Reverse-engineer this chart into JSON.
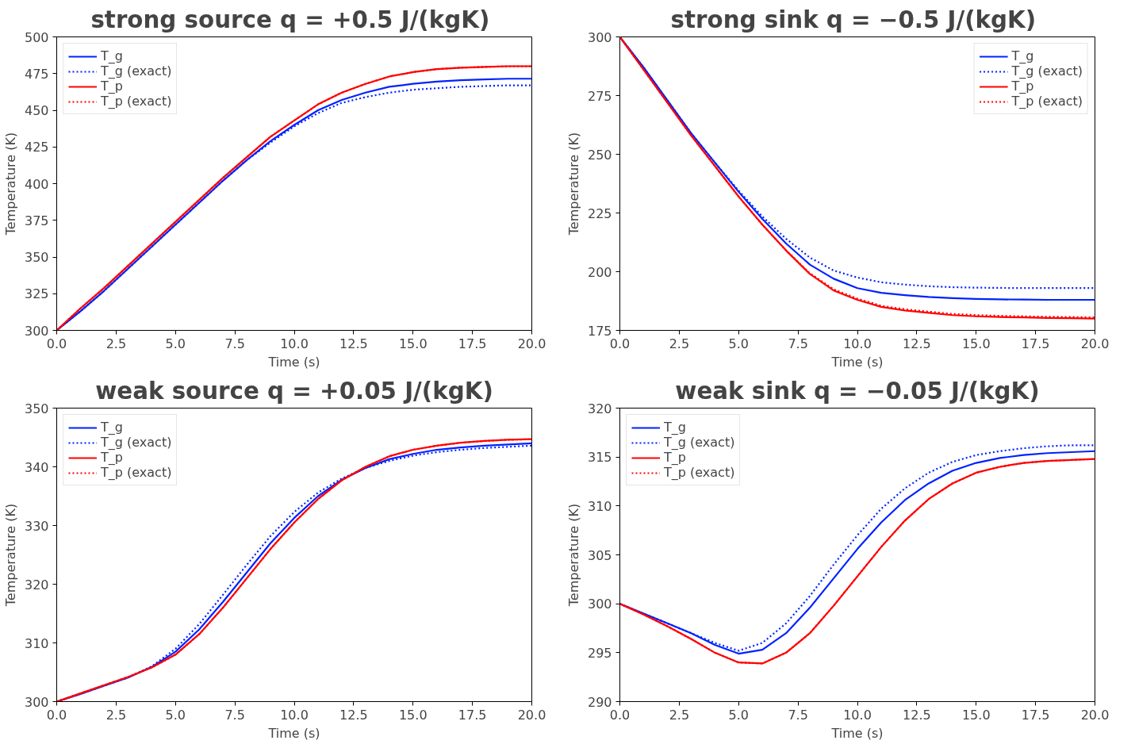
{
  "chart_data": [
    {
      "type": "line",
      "title": "strong  source q = +0.5 J/(kgK)",
      "xlabel": "Time (s)",
      "ylabel": "Temperature (K)",
      "legend": "top left",
      "grid": false,
      "x": [
        0,
        1,
        2,
        3,
        4,
        5,
        6,
        7,
        8,
        9,
        10,
        11,
        12,
        13,
        14,
        15,
        16,
        17,
        18,
        19,
        20
      ],
      "xlim": [
        0,
        20
      ],
      "xticks": [
        {
          "value": 0,
          "label": "0.0"
        },
        {
          "value": 2.5,
          "label": "2.5"
        },
        {
          "value": 5,
          "label": "5.0"
        },
        {
          "value": 7.5,
          "label": "7.5"
        },
        {
          "value": 10,
          "label": "10.0"
        },
        {
          "value": 12.5,
          "label": "12.5"
        },
        {
          "value": 15,
          "label": "15.0"
        },
        {
          "value": 17.5,
          "label": "17.5"
        },
        {
          "value": 20,
          "label": "20.0"
        }
      ],
      "ylim": [
        300,
        500
      ],
      "yticks": [
        300,
        325,
        350,
        375,
        400,
        425,
        450,
        475,
        500
      ],
      "series": [
        {
          "name": "T_g",
          "color": "#0022ff",
          "line_style": "solid",
          "values": [
            300,
            313,
            327,
            342,
            357,
            372,
            387,
            402,
            416,
            429,
            440,
            450,
            457,
            462,
            466,
            468,
            469.5,
            470.5,
            471,
            471.5,
            471.5
          ]
        },
        {
          "name": "T_g (exact)",
          "color": "#0022ff",
          "line_style": "dotted",
          "values": [
            300,
            313,
            327,
            342,
            357,
            372,
            387,
            402,
            416,
            428,
            439,
            448,
            455,
            459,
            462,
            464,
            465,
            466,
            466.5,
            467,
            467
          ]
        },
        {
          "name": "T_p",
          "color": "#ff0000",
          "line_style": "solid",
          "values": [
            300,
            315,
            329,
            344,
            359,
            374,
            389,
            404,
            418,
            432,
            443,
            454,
            462,
            468,
            473,
            476,
            478,
            479,
            479.5,
            480,
            480
          ]
        },
        {
          "name": "T_p (exact)",
          "color": "#ff0000",
          "line_style": "dotted",
          "values": [
            300,
            315,
            329,
            344,
            359,
            374,
            389,
            404,
            418,
            432,
            443,
            454,
            462,
            468,
            473,
            476,
            478,
            479,
            479.5,
            480,
            480
          ]
        }
      ]
    },
    {
      "type": "line",
      "title": "strong  sink q = −0.5 J/(kgK)",
      "xlabel": "Time (s)",
      "ylabel": "Temperature (K)",
      "legend": "top right",
      "grid": false,
      "x": [
        0,
        1,
        2,
        3,
        4,
        5,
        6,
        7,
        8,
        9,
        10,
        11,
        12,
        13,
        14,
        15,
        16,
        17,
        18,
        19,
        20
      ],
      "xlim": [
        0,
        20
      ],
      "xticks": [
        {
          "value": 0,
          "label": "0.0"
        },
        {
          "value": 2.5,
          "label": "2.5"
        },
        {
          "value": 5,
          "label": "5.0"
        },
        {
          "value": 7.5,
          "label": "7.5"
        },
        {
          "value": 10,
          "label": "10.0"
        },
        {
          "value": 12.5,
          "label": "12.5"
        },
        {
          "value": 15,
          "label": "15.0"
        },
        {
          "value": 17.5,
          "label": "17.5"
        },
        {
          "value": 20,
          "label": "20.0"
        }
      ],
      "ylim": [
        175,
        300
      ],
      "yticks": [
        175,
        200,
        225,
        250,
        275,
        300
      ],
      "series": [
        {
          "name": "T_g",
          "color": "#0022ff",
          "line_style": "solid",
          "values": [
            300,
            287,
            273,
            259,
            246.5,
            234,
            222.5,
            212,
            203,
            197,
            193,
            191,
            190,
            189.2,
            188.7,
            188.4,
            188.2,
            188.1,
            188,
            188,
            188
          ]
        },
        {
          "name": "T_g (exact)",
          "color": "#0022ff",
          "line_style": "dotted",
          "values": [
            300,
            287,
            273,
            259,
            246.5,
            234.5,
            223.5,
            214,
            206,
            200.5,
            197.5,
            195.5,
            194.5,
            193.8,
            193.4,
            193.2,
            193.1,
            193,
            193,
            193,
            193
          ]
        },
        {
          "name": "T_p",
          "color": "#ff0000",
          "line_style": "solid",
          "values": [
            300,
            286,
            272,
            258,
            245,
            232,
            220,
            209,
            199,
            192,
            188,
            185,
            183.5,
            182.5,
            181.5,
            181,
            180.7,
            180.5,
            180.3,
            180.2,
            180
          ]
        },
        {
          "name": "T_p (exact)",
          "color": "#ff0000",
          "line_style": "dotted",
          "values": [
            300,
            286,
            272,
            258,
            245,
            232,
            220,
            209,
            199.3,
            192.5,
            188.5,
            185.5,
            184,
            183,
            182,
            181.5,
            181.2,
            181,
            180.8,
            180.7,
            180.5
          ]
        }
      ]
    },
    {
      "type": "line",
      "title": "weak source q = +0.05 J/(kgK)",
      "xlabel": "Time (s)",
      "ylabel": "Temperature (K)",
      "legend": "top left",
      "grid": false,
      "x": [
        0,
        1,
        2,
        3,
        4,
        5,
        6,
        7,
        8,
        9,
        10,
        11,
        12,
        13,
        14,
        15,
        16,
        17,
        18,
        19,
        20
      ],
      "xlim": [
        0,
        20
      ],
      "xticks": [
        {
          "value": 0,
          "label": "0.0"
        },
        {
          "value": 2.5,
          "label": "2.5"
        },
        {
          "value": 5,
          "label": "5.0"
        },
        {
          "value": 7.5,
          "label": "7.5"
        },
        {
          "value": 10,
          "label": "10.0"
        },
        {
          "value": 12.5,
          "label": "12.5"
        },
        {
          "value": 15,
          "label": "15.0"
        },
        {
          "value": 17.5,
          "label": "17.5"
        },
        {
          "value": 20,
          "label": "20.0"
        }
      ],
      "ylim": [
        300,
        350
      ],
      "yticks": [
        300,
        310,
        320,
        330,
        340,
        350
      ],
      "series": [
        {
          "name": "T_g",
          "color": "#0022ff",
          "line_style": "solid",
          "values": [
            300,
            301.3,
            302.7,
            304.1,
            305.9,
            308.5,
            312.3,
            317,
            322,
            327,
            331.3,
            335,
            337.8,
            339.8,
            341.3,
            342.2,
            342.9,
            343.3,
            343.6,
            343.8,
            344
          ]
        },
        {
          "name": "T_g (exact)",
          "color": "#0022ff",
          "line_style": "dotted",
          "values": [
            300,
            301.3,
            302.7,
            304.1,
            306,
            309,
            313.2,
            318.2,
            323.3,
            328.2,
            332.3,
            335.6,
            338,
            339.8,
            341,
            341.9,
            342.5,
            342.9,
            343.2,
            343.4,
            343.6
          ]
        },
        {
          "name": "T_p",
          "color": "#ff0000",
          "line_style": "solid",
          "values": [
            300,
            301.4,
            302.8,
            304.2,
            305.8,
            308,
            311.5,
            316,
            321,
            326,
            330.5,
            334.5,
            337.7,
            340,
            341.8,
            342.9,
            343.6,
            344.1,
            344.4,
            344.6,
            344.7
          ]
        },
        {
          "name": "T_p (exact)",
          "color": "#ff0000",
          "line_style": "dotted",
          "values": [
            300,
            301.4,
            302.8,
            304.2,
            305.8,
            308,
            311.5,
            316,
            321,
            326,
            330.5,
            334.5,
            337.7,
            340,
            341.8,
            342.9,
            343.6,
            344.1,
            344.4,
            344.6,
            344.7
          ]
        }
      ]
    },
    {
      "type": "line",
      "title": "weak sink q = −0.05 J/(kgK)",
      "xlabel": "Time (s)",
      "ylabel": "Temperature (K)",
      "legend": "top left",
      "grid": false,
      "x": [
        0,
        1,
        2,
        3,
        4,
        5,
        6,
        7,
        8,
        9,
        10,
        11,
        12,
        13,
        14,
        15,
        16,
        17,
        18,
        19,
        20
      ],
      "xlim": [
        0,
        20
      ],
      "xticks": [
        {
          "value": 0,
          "label": "0.0"
        },
        {
          "value": 2.5,
          "label": "2.5"
        },
        {
          "value": 5,
          "label": "5.0"
        },
        {
          "value": 7.5,
          "label": "7.5"
        },
        {
          "value": 10,
          "label": "10.0"
        },
        {
          "value": 12.5,
          "label": "12.5"
        },
        {
          "value": 15,
          "label": "15.0"
        },
        {
          "value": 17.5,
          "label": "17.5"
        },
        {
          "value": 20,
          "label": "20.0"
        }
      ],
      "ylim": [
        290,
        320
      ],
      "yticks": [
        290,
        295,
        300,
        305,
        310,
        315,
        320
      ],
      "series": [
        {
          "name": "T_g",
          "color": "#0022ff",
          "line_style": "solid",
          "values": [
            300,
            299,
            298,
            297,
            295.8,
            294.9,
            295.3,
            297,
            299.6,
            302.6,
            305.6,
            308.3,
            310.6,
            312.3,
            313.6,
            314.4,
            314.9,
            315.2,
            315.4,
            315.5,
            315.6
          ]
        },
        {
          "name": "T_g (exact)",
          "color": "#0022ff",
          "line_style": "dotted",
          "values": [
            300,
            299,
            298,
            297,
            296,
            295.2,
            296,
            298,
            300.8,
            304,
            307,
            309.7,
            311.8,
            313.4,
            314.5,
            315.2,
            315.6,
            315.9,
            316.1,
            316.2,
            316.2
          ]
        },
        {
          "name": "T_p",
          "color": "#ff0000",
          "line_style": "solid",
          "values": [
            300,
            298.9,
            297.7,
            296.4,
            295,
            294,
            293.9,
            295,
            297,
            299.8,
            302.8,
            305.8,
            308.5,
            310.7,
            312.3,
            313.4,
            314,
            314.4,
            314.6,
            314.7,
            314.8
          ]
        },
        {
          "name": "T_p (exact)",
          "color": "#ff0000",
          "line_style": "dotted",
          "values": [
            300,
            298.9,
            297.7,
            296.4,
            295,
            294,
            293.9,
            295,
            297,
            299.8,
            302.8,
            305.8,
            308.5,
            310.7,
            312.3,
            313.4,
            314,
            314.4,
            314.6,
            314.7,
            314.8
          ]
        }
      ]
    }
  ]
}
